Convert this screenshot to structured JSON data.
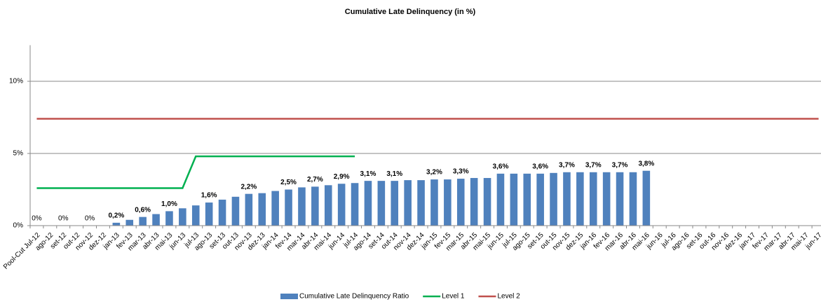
{
  "chart_data": {
    "type": "bar",
    "title": "Cumulative Late Delinquency (in %)",
    "categories": [
      "Pool-Cut Jul-12",
      "ago-12",
      "set-12",
      "out-12",
      "nov-12",
      "dez-12",
      "jan-13",
      "fev-13",
      "mar-13",
      "abr-13",
      "mai-13",
      "jun-13",
      "jul-13",
      "ago-13",
      "set-13",
      "out-13",
      "nov-13",
      "dez-13",
      "jan-14",
      "fev-14",
      "mar-14",
      "abr-14",
      "mai-14",
      "jun-14",
      "jul-14",
      "ago-14",
      "set-14",
      "out-14",
      "nov-14",
      "dez-14",
      "jan-15",
      "fev-15",
      "mar-15",
      "abr-15",
      "mai-15",
      "jun-15",
      "jul-15",
      "ago-15",
      "set-15",
      "out-15",
      "nov-15",
      "dez-15",
      "jan-16",
      "fev-16",
      "mar-16",
      "abr-16",
      "mai-16",
      "jun-16",
      "jul-16",
      "ago-16",
      "set-16",
      "out-16",
      "nov-16",
      "dez-16",
      "jan-17",
      "fev-17",
      "mar-17",
      "abr-17",
      "mai-17",
      "jun-17"
    ],
    "series": [
      {
        "name": "Cumulative Late Delinquency Ratio",
        "type": "bar",
        "color": "#4f81bd",
        "values": [
          0,
          0,
          0,
          0,
          0,
          0,
          0.2,
          0.4,
          0.6,
          0.8,
          1.0,
          1.2,
          1.4,
          1.6,
          1.8,
          2.0,
          2.2,
          2.25,
          2.4,
          2.5,
          2.65,
          2.7,
          2.8,
          2.9,
          2.95,
          3.1,
          3.1,
          3.1,
          3.15,
          3.15,
          3.2,
          3.2,
          3.25,
          3.3,
          3.3,
          3.6,
          3.6,
          3.6,
          3.6,
          3.65,
          3.7,
          3.7,
          3.7,
          3.7,
          3.7,
          3.7,
          3.8,
          null,
          null,
          null,
          null,
          null,
          null,
          null,
          null,
          null,
          null,
          null,
          null,
          null
        ],
        "value_labels": [
          "0%",
          null,
          "0%",
          null,
          "0%",
          null,
          "0,2%",
          null,
          "0,6%",
          null,
          "1,0%",
          null,
          null,
          "1,6%",
          null,
          null,
          "2,2%",
          null,
          null,
          "2,5%",
          null,
          "2,7%",
          null,
          "2,9%",
          null,
          "3,1%",
          null,
          "3,1%",
          null,
          null,
          "3,2%",
          null,
          "3,3%",
          null,
          null,
          "3,6%",
          null,
          null,
          "3,6%",
          null,
          "3,7%",
          null,
          "3,7%",
          null,
          "3,7%",
          null,
          "3,8%",
          null,
          null,
          null,
          null,
          null,
          null,
          null,
          null,
          null,
          null,
          null,
          null,
          null
        ]
      },
      {
        "name": "Level 1",
        "type": "line",
        "color": "#00b050",
        "values": [
          2.6,
          2.6,
          2.6,
          2.6,
          2.6,
          2.6,
          2.6,
          2.6,
          2.6,
          2.6,
          2.6,
          2.6,
          4.8,
          4.8,
          4.8,
          4.8,
          4.8,
          4.8,
          4.8,
          4.8,
          4.8,
          4.8,
          4.8,
          4.8,
          4.8,
          null,
          null,
          null,
          null,
          null,
          null,
          null,
          null,
          null,
          null,
          null,
          null,
          null,
          null,
          null,
          null,
          null,
          null,
          null,
          null,
          null,
          null,
          null,
          null,
          null,
          null,
          null,
          null,
          null,
          null,
          null,
          null,
          null,
          null,
          null
        ]
      },
      {
        "name": "Level 2",
        "type": "line",
        "color": "#c0504d",
        "values": [
          7.4,
          7.4,
          7.4,
          7.4,
          7.4,
          7.4,
          7.4,
          7.4,
          7.4,
          7.4,
          7.4,
          7.4,
          7.4,
          7.4,
          7.4,
          7.4,
          7.4,
          7.4,
          7.4,
          7.4,
          7.4,
          7.4,
          7.4,
          7.4,
          7.4,
          7.4,
          7.4,
          7.4,
          7.4,
          7.4,
          7.4,
          7.4,
          7.4,
          7.4,
          7.4,
          7.4,
          7.4,
          7.4,
          7.4,
          7.4,
          7.4,
          7.4,
          7.4,
          7.4,
          7.4,
          7.4,
          7.4,
          7.4,
          7.4,
          7.4,
          7.4,
          7.4,
          7.4,
          7.4,
          7.4,
          7.4,
          7.4,
          7.4,
          7.4,
          7.4
        ]
      }
    ],
    "ylim": [
      0,
      12.5
    ],
    "yticks": [
      {
        "value": 0,
        "label": "0%"
      },
      {
        "value": 5,
        "label": "5%"
      },
      {
        "value": 10,
        "label": "10%"
      }
    ],
    "grid": true,
    "legend": "bottom"
  }
}
